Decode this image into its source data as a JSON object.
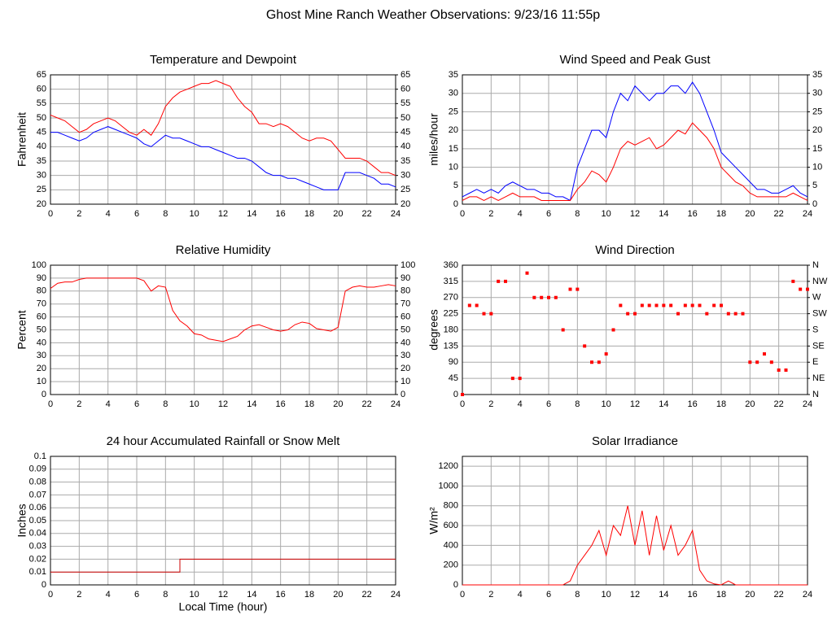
{
  "page_title": "Ghost Mine Ranch Weather Observations: 9/23/16 11:55p",
  "chart_data": [
    {
      "type": "line",
      "title": "Temperature and Dewpoint",
      "y_label": "Fahrenheit",
      "x": [
        0,
        0.5,
        1,
        1.5,
        2,
        2.5,
        3,
        3.5,
        4,
        4.5,
        5,
        5.5,
        6,
        6.5,
        7,
        7.5,
        8,
        8.5,
        9,
        9.5,
        10,
        10.5,
        11,
        11.5,
        12,
        12.5,
        13,
        13.5,
        14,
        14.5,
        15,
        15.5,
        16,
        16.5,
        17,
        17.5,
        18,
        18.5,
        19,
        19.5,
        20,
        20.5,
        21,
        21.5,
        22,
        22.5,
        23,
        23.5,
        24
      ],
      "series": [
        {
          "color": "#ff0000",
          "values": [
            51,
            50,
            49,
            47,
            45,
            46,
            48,
            49,
            50,
            49,
            47,
            45,
            44,
            46,
            44,
            48,
            54,
            57,
            59,
            60,
            61,
            62,
            62,
            63,
            62,
            61,
            57,
            54,
            52,
            48,
            48,
            47,
            48,
            47,
            45,
            43,
            42,
            43,
            43,
            42,
            39,
            36,
            36,
            36,
            35,
            33,
            31,
            31,
            30
          ]
        },
        {
          "color": "#0000ff",
          "values": [
            45,
            45,
            44,
            43,
            42,
            43,
            45,
            46,
            47,
            46,
            45,
            44,
            43,
            41,
            40,
            42,
            44,
            43,
            43,
            42,
            41,
            40,
            40,
            39,
            38,
            37,
            36,
            36,
            35,
            33,
            31,
            30,
            30,
            29,
            29,
            28,
            27,
            26,
            25,
            25,
            25,
            31,
            31,
            31,
            30,
            29,
            27,
            27,
            26
          ]
        }
      ],
      "xlim": [
        0,
        24
      ],
      "xticks": [
        0,
        2,
        4,
        6,
        8,
        10,
        12,
        14,
        16,
        18,
        20,
        22,
        24
      ],
      "ylim": [
        20,
        65
      ],
      "yticks": [
        20,
        25,
        30,
        35,
        40,
        45,
        50,
        55,
        60,
        65
      ],
      "y2lim": [
        20,
        65
      ],
      "y2ticks": [
        20,
        25,
        30,
        35,
        40,
        45,
        50,
        55,
        60,
        65
      ],
      "grid": true
    },
    {
      "type": "line",
      "title": "Wind Speed and Peak Gust",
      "y_label": "miles/hour",
      "x": [
        0,
        0.5,
        1,
        1.5,
        2,
        2.5,
        3,
        3.5,
        4,
        4.5,
        5,
        5.5,
        6,
        6.5,
        7,
        7.5,
        8,
        8.5,
        9,
        9.5,
        10,
        10.5,
        11,
        11.5,
        12,
        12.5,
        13,
        13.5,
        14,
        14.5,
        15,
        15.5,
        16,
        16.5,
        17,
        17.5,
        18,
        18.5,
        19,
        19.5,
        20,
        20.5,
        21,
        21.5,
        22,
        22.5,
        23,
        23.5,
        24
      ],
      "series": [
        {
          "color": "#0000ff",
          "values": [
            2,
            3,
            4,
            3,
            4,
            3,
            5,
            6,
            5,
            4,
            4,
            3,
            3,
            2,
            2,
            1,
            10,
            15,
            20,
            20,
            18,
            25,
            30,
            28,
            32,
            30,
            28,
            30,
            30,
            32,
            32,
            30,
            33,
            30,
            25,
            20,
            14,
            12,
            10,
            8,
            6,
            4,
            4,
            3,
            3,
            4,
            5,
            3,
            2
          ]
        },
        {
          "color": "#ff0000",
          "values": [
            1,
            2,
            2,
            1,
            2,
            1,
            2,
            3,
            2,
            2,
            2,
            1,
            1,
            1,
            1,
            1,
            4,
            6,
            9,
            8,
            6,
            10,
            15,
            17,
            16,
            17,
            18,
            15,
            16,
            18,
            20,
            19,
            22,
            20,
            18,
            15,
            10,
            8,
            6,
            5,
            3,
            2,
            2,
            2,
            2,
            2,
            3,
            2,
            1
          ]
        }
      ],
      "xlim": [
        0,
        24
      ],
      "xticks": [
        0,
        2,
        4,
        6,
        8,
        10,
        12,
        14,
        16,
        18,
        20,
        22,
        24
      ],
      "ylim": [
        0,
        35
      ],
      "yticks": [
        0,
        5,
        10,
        15,
        20,
        25,
        30,
        35
      ],
      "y2lim": [
        0,
        35
      ],
      "y2ticks": [
        0,
        5,
        10,
        15,
        20,
        25,
        30,
        35
      ],
      "grid": true
    },
    {
      "type": "line",
      "title": "Relative Humidity",
      "y_label": "Percent",
      "x": [
        0,
        0.5,
        1,
        1.5,
        2,
        2.5,
        3,
        3.5,
        4,
        4.5,
        5,
        5.5,
        6,
        6.5,
        7,
        7.5,
        8,
        8.5,
        9,
        9.5,
        10,
        10.5,
        11,
        11.5,
        12,
        12.5,
        13,
        13.5,
        14,
        14.5,
        15,
        15.5,
        16,
        16.5,
        17,
        17.5,
        18,
        18.5,
        19,
        19.5,
        20,
        20.5,
        21,
        21.5,
        22,
        22.5,
        23,
        23.5,
        24
      ],
      "series": [
        {
          "color": "#ff0000",
          "values": [
            82,
            86,
            87,
            87,
            89,
            90,
            90,
            90,
            90,
            90,
            90,
            90,
            90,
            88,
            80,
            84,
            83,
            65,
            57,
            53,
            47,
            46,
            43,
            42,
            41,
            43,
            45,
            50,
            53,
            54,
            52,
            50,
            49,
            50,
            54,
            56,
            55,
            51,
            50,
            49,
            52,
            80,
            83,
            84,
            83,
            83,
            84,
            85,
            84
          ]
        }
      ],
      "xlim": [
        0,
        24
      ],
      "xticks": [
        0,
        2,
        4,
        6,
        8,
        10,
        12,
        14,
        16,
        18,
        20,
        22,
        24
      ],
      "ylim": [
        0,
        100
      ],
      "yticks": [
        0,
        10,
        20,
        30,
        40,
        50,
        60,
        70,
        80,
        90,
        100
      ],
      "y2lim": [
        0,
        100
      ],
      "y2ticks": [
        0,
        10,
        20,
        30,
        40,
        50,
        60,
        70,
        80,
        90,
        100
      ],
      "grid": true
    },
    {
      "type": "scatter",
      "title": "Wind Direction",
      "y_label": "degrees",
      "x": [
        0,
        0.5,
        1,
        1.5,
        2,
        2.5,
        3,
        3.5,
        4,
        4.5,
        5,
        5.5,
        6,
        6.5,
        7,
        7.5,
        8,
        8.5,
        9,
        9.5,
        10,
        10.5,
        11,
        11.5,
        12,
        12.5,
        13,
        13.5,
        14,
        14.5,
        15,
        15.5,
        16,
        16.5,
        17,
        17.5,
        18,
        18.5,
        19,
        19.5,
        20,
        20.5,
        21,
        21.5,
        22,
        22.5,
        23,
        23.5,
        24
      ],
      "series": [
        {
          "color": "#ff0000",
          "values": [
            0,
            248,
            248,
            225,
            225,
            315,
            315,
            45,
            45,
            338,
            270,
            270,
            270,
            270,
            180,
            293,
            293,
            135,
            90,
            90,
            113,
            180,
            248,
            225,
            225,
            248,
            248,
            248,
            248,
            248,
            225,
            248,
            248,
            248,
            225,
            248,
            248,
            225,
            225,
            225,
            90,
            90,
            113,
            90,
            68,
            68,
            315,
            293,
            293
          ]
        }
      ],
      "xlim": [
        0,
        24
      ],
      "xticks": [
        0,
        2,
        4,
        6,
        8,
        10,
        12,
        14,
        16,
        18,
        20,
        22,
        24
      ],
      "ylim": [
        0,
        360
      ],
      "yticks": [
        0,
        45,
        90,
        135,
        180,
        225,
        270,
        315,
        360
      ],
      "y2lim": [
        0,
        360
      ],
      "y2ticks": [
        {
          "value": 0,
          "label": "N"
        },
        {
          "value": 45,
          "label": "NE"
        },
        {
          "value": 90,
          "label": "E"
        },
        {
          "value": 135,
          "label": "SE"
        },
        {
          "value": 180,
          "label": "S"
        },
        {
          "value": 225,
          "label": "SW"
        },
        {
          "value": 270,
          "label": "W"
        },
        {
          "value": 315,
          "label": "NW"
        },
        {
          "value": 360,
          "label": "N"
        }
      ],
      "grid": true
    },
    {
      "type": "line",
      "title": "24 hour Accumulated Rainfall or Snow Melt",
      "y_label": "Inches",
      "x_label": "Local Time (hour)",
      "x": [
        0,
        9,
        9,
        24
      ],
      "series": [
        {
          "color": "#cc0000",
          "values": [
            0.01,
            0.01,
            0.02,
            0.02
          ]
        }
      ],
      "xlim": [
        0,
        24
      ],
      "xticks": [
        0,
        2,
        4,
        6,
        8,
        10,
        12,
        14,
        16,
        18,
        20,
        22,
        24
      ],
      "ylim": [
        0,
        0.1
      ],
      "yticks": [
        0,
        0.01,
        0.02,
        0.03,
        0.04,
        0.05,
        0.06,
        0.07,
        0.08,
        0.09,
        0.1
      ],
      "grid": true
    },
    {
      "type": "line",
      "title": "Solar Irradiance",
      "y_label": "W/m²",
      "x": [
        0,
        0.5,
        1,
        1.5,
        2,
        2.5,
        3,
        3.5,
        4,
        4.5,
        5,
        5.5,
        6,
        6.5,
        7,
        7.5,
        8,
        8.5,
        9,
        9.5,
        10,
        10.5,
        11,
        11.5,
        12,
        12.5,
        13,
        13.5,
        14,
        14.5,
        15,
        15.5,
        16,
        16.5,
        17,
        17.5,
        18,
        18.5,
        19,
        19.5,
        20,
        20.5,
        21,
        21.5,
        22,
        22.5,
        23,
        23.5,
        24
      ],
      "series": [
        {
          "color": "#ff0000",
          "values": [
            0,
            0,
            0,
            0,
            0,
            0,
            0,
            0,
            0,
            0,
            0,
            0,
            0,
            0,
            0,
            40,
            200,
            300,
            400,
            550,
            300,
            600,
            500,
            800,
            400,
            750,
            300,
            700,
            350,
            600,
            300,
            400,
            550,
            150,
            40,
            10,
            0,
            40,
            0,
            0,
            0,
            0,
            0,
            0,
            0,
            0,
            0,
            0,
            0
          ]
        }
      ],
      "xlim": [
        0,
        24
      ],
      "xticks": [
        0,
        2,
        4,
        6,
        8,
        10,
        12,
        14,
        16,
        18,
        20,
        22,
        24
      ],
      "ylim": [
        0,
        1300
      ],
      "yticks": [
        0,
        200,
        400,
        600,
        800,
        1000,
        1200
      ],
      "grid": true
    }
  ]
}
